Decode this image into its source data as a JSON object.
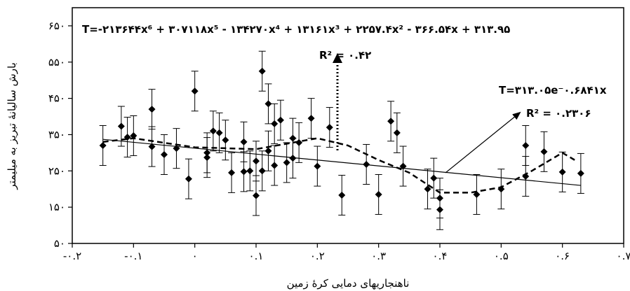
{
  "chart_data": {
    "type": "scatter",
    "xlabel": "ناهنجاریهای دمایی کرهٔ زمین",
    "ylabel": "بارش سالیانهٔ تبریز به میلیمتر",
    "xlim": [
      -0.2,
      0.7
    ],
    "ylim": [
      50,
      700
    ],
    "x_ticks": [
      -0.2,
      -0.1,
      0,
      0.1,
      0.2,
      0.3,
      0.4,
      0.5,
      0.6,
      0.7
    ],
    "x_tick_labels": [
      "-۰.۲",
      "-۰.۱",
      "۰",
      "۰.۱",
      "۰.۲",
      "۰.۳",
      "۰.۴",
      "۰.۵",
      "۰.۶",
      "۰.۷"
    ],
    "y_ticks": [
      50,
      150,
      250,
      350,
      450,
      550,
      650
    ],
    "y_tick_labels": [
      "۵۰",
      "۱۵۰",
      "۲۵۰",
      "۳۵۰",
      "۴۵۰",
      "۵۵۰",
      "۶۵۰"
    ],
    "grid": false,
    "series": [
      {
        "type": "scatter",
        "x": [
          -0.15,
          -0.12,
          -0.11,
          -0.1,
          -0.07,
          -0.07,
          -0.05,
          -0.03,
          -0.01,
          0.0,
          0.02,
          0.02,
          0.03,
          0.04,
          0.05,
          0.06,
          0.08,
          0.08,
          0.09,
          0.1,
          0.1,
          0.11,
          0.11,
          0.12,
          0.12,
          0.13,
          0.13,
          0.14,
          0.15,
          0.16,
          0.16,
          0.17,
          0.19,
          0.2,
          0.22,
          0.24,
          0.28,
          0.3,
          0.32,
          0.33,
          0.34,
          0.38,
          0.39,
          0.4,
          0.4,
          0.46,
          0.5,
          0.54,
          0.54,
          0.57,
          0.6,
          0.63
        ],
        "y": [
          320,
          373,
          343,
          347,
          420,
          317,
          295,
          312,
          228,
          470,
          300,
          287,
          360,
          355,
          335,
          245,
          330,
          248,
          250,
          182,
          277,
          250,
          525,
          435,
          305,
          380,
          265,
          390,
          273,
          340,
          285,
          328,
          395,
          263,
          370,
          183,
          268,
          185,
          387,
          355,
          263,
          200,
          230,
          175,
          143,
          185,
          200,
          235,
          320,
          303,
          247,
          243
        ]
      },
      {
        "type": "line",
        "name": "T",
        "equation": "T=-۲۱۳۶۴۴x⁶ + ۳۰۷۱۱۸x⁵ - ۱۳۴۲۷۰x⁴ + ۱۳۱۶۱x³ + ۲۲۵۷.۴x² - ۳۶۶.۵۴x + ۳۱۳.۹۵",
        "r2_label": "R² = ۰.۴۲",
        "x": [
          -0.15,
          -0.1,
          0.0,
          0.1,
          0.2,
          0.25,
          0.3,
          0.35,
          0.4,
          0.45,
          0.5,
          0.55,
          0.6,
          0.62
        ],
        "y": [
          330,
          340,
          315,
          310,
          340,
          320,
          280,
          245,
          190,
          190,
          205,
          250,
          300,
          280
        ]
      },
      {
        "type": "line",
        "name": "T",
        "equation": "T=۳۱۳.۰۵e⁻۰.۶۸۴۱x",
        "r2_label": "R² = ۰.۲۳۰۶",
        "x": [
          -0.15,
          0.63
        ],
        "y": [
          337,
          210
        ]
      }
    ],
    "error_bar": 55,
    "annotations": [
      {
        "text": "T=-۲۱۳۶۴۴x⁶ + ۳۰۷۱۱۸x⁵ - ۱۳۴۲۷۰x⁴ + ۱۳۱۶۱x³ + ۲۲۵۷.۴x² - ۳۶۶.۵۴x + ۳۱۳.۹۵"
      },
      {
        "text": "R² = ۰.۴۲"
      },
      {
        "text": "T=۳۱۳.۰۵e⁻۰.۶۸۴۱x"
      },
      {
        "text": "R² = ۰.۲۳۰۶"
      }
    ]
  }
}
